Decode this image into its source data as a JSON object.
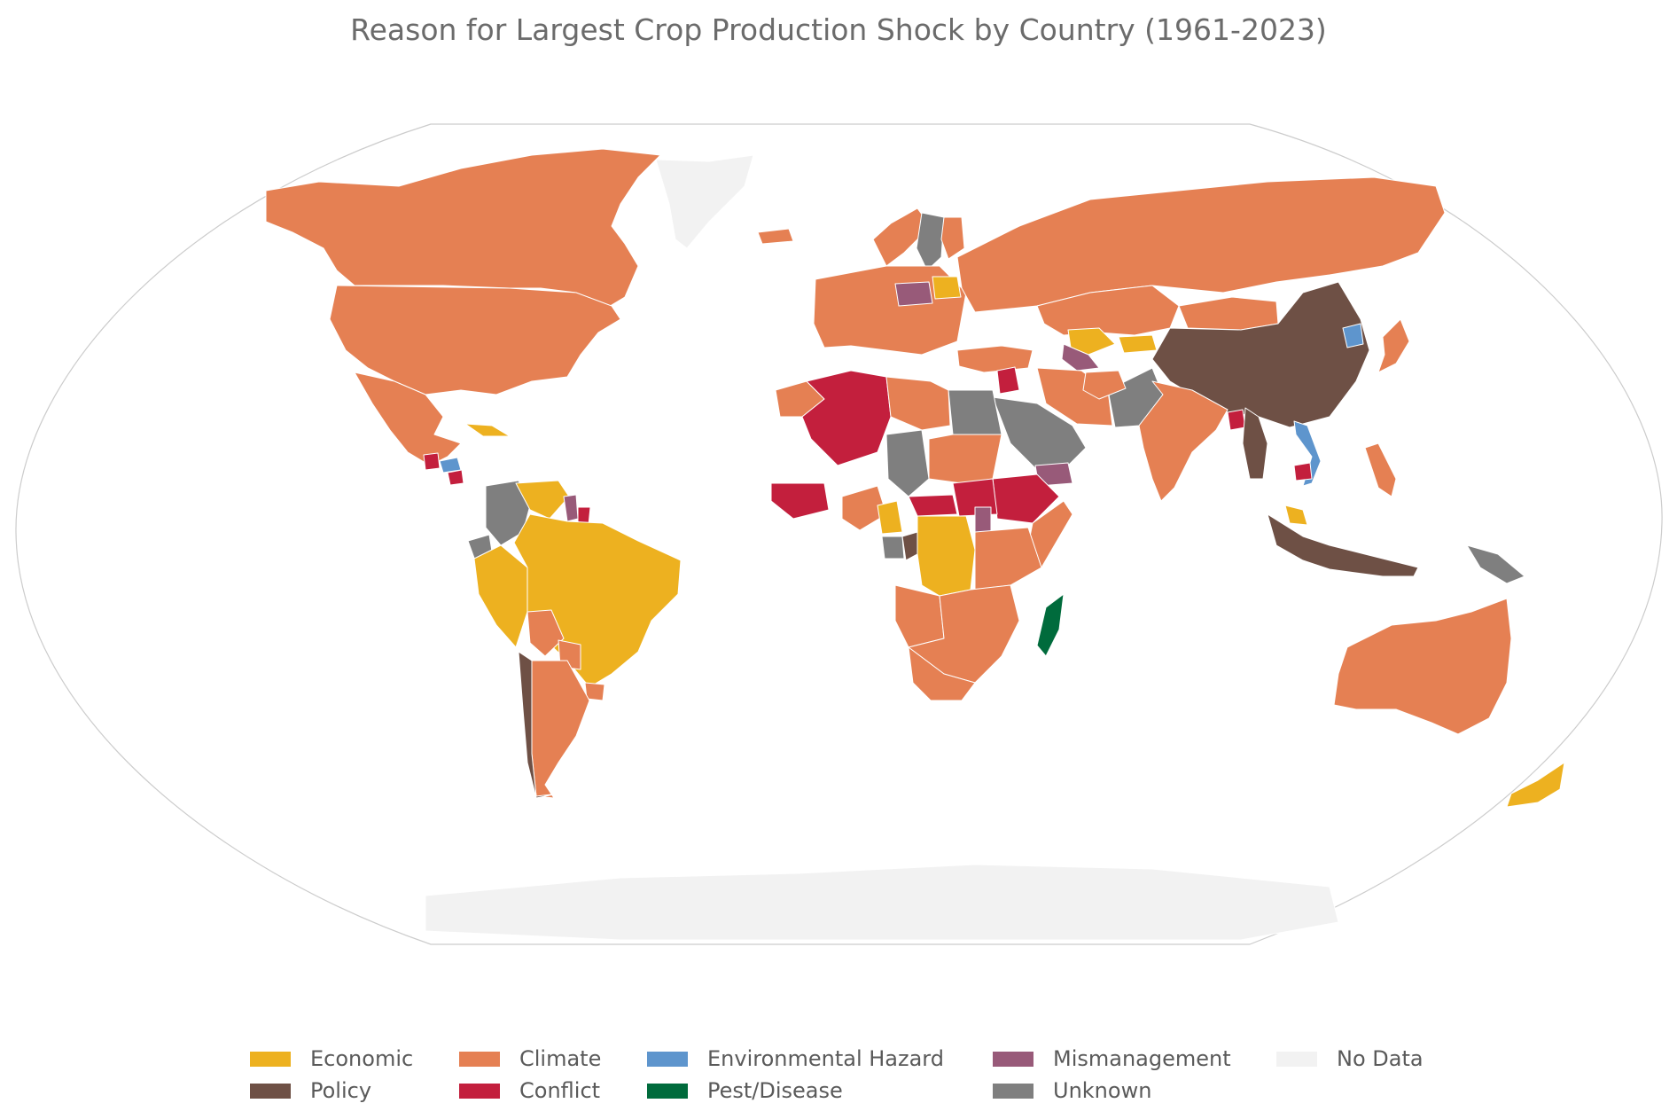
{
  "title": "Reason for Largest Crop Production Shock by Country (1961-2023)",
  "colors": {
    "economic": "#EDB120",
    "climate": "#E58053",
    "environmental": "#5E95CD",
    "mismanagement": "#985A79",
    "nodata": "#F2F2F2",
    "policy": "#6E5045",
    "conflict": "#C31F3D",
    "pest": "#006B3C",
    "unknown": "#7F7F7F"
  },
  "legend": [
    {
      "label": "Economic",
      "color": "#EDB120"
    },
    {
      "label": "Climate",
      "color": "#E58053"
    },
    {
      "label": "Environmental Hazard",
      "color": "#5E95CD"
    },
    {
      "label": "Mismanagement",
      "color": "#985A79"
    },
    {
      "label": "No Data",
      "color": "#F2F2F2"
    },
    {
      "label": "Policy",
      "color": "#6E5045"
    },
    {
      "label": "Conflict",
      "color": "#C31F3D"
    },
    {
      "label": "Pest/Disease",
      "color": "#006B3C"
    },
    {
      "label": "Unknown",
      "color": "#7F7F7F"
    }
  ],
  "chart_data": {
    "type": "choropleth",
    "title": "Reason for Largest Crop Production Shock by Country (1961-2023)",
    "categories": [
      "Economic",
      "Climate",
      "Environmental Hazard",
      "Mismanagement",
      "No Data",
      "Policy",
      "Conflict",
      "Pest/Disease",
      "Unknown"
    ],
    "regions": [
      {
        "name": "Canada",
        "category": "Climate"
      },
      {
        "name": "United States",
        "category": "Climate"
      },
      {
        "name": "Mexico",
        "category": "Climate"
      },
      {
        "name": "Cuba",
        "category": "Economic"
      },
      {
        "name": "Guatemala",
        "category": "Conflict"
      },
      {
        "name": "Honduras",
        "category": "Environmental Hazard"
      },
      {
        "name": "Nicaragua",
        "category": "Conflict"
      },
      {
        "name": "Colombia",
        "category": "Unknown"
      },
      {
        "name": "Venezuela",
        "category": "Economic"
      },
      {
        "name": "Guyana",
        "category": "Mismanagement"
      },
      {
        "name": "Suriname",
        "category": "Conflict"
      },
      {
        "name": "Ecuador",
        "category": "Unknown"
      },
      {
        "name": "Peru",
        "category": "Economic"
      },
      {
        "name": "Brazil",
        "category": "Economic"
      },
      {
        "name": "Bolivia",
        "category": "Climate"
      },
      {
        "name": "Paraguay",
        "category": "Climate"
      },
      {
        "name": "Uruguay",
        "category": "Climate"
      },
      {
        "name": "Argentina",
        "category": "Climate"
      },
      {
        "name": "Chile",
        "category": "Policy"
      },
      {
        "name": "Greenland",
        "category": "No Data"
      },
      {
        "name": "Iceland",
        "category": "Climate"
      },
      {
        "name": "Norway",
        "category": "Climate"
      },
      {
        "name": "Sweden",
        "category": "Unknown"
      },
      {
        "name": "Finland",
        "category": "Climate"
      },
      {
        "name": "Poland",
        "category": "Mismanagement"
      },
      {
        "name": "Belarus",
        "category": "Economic"
      },
      {
        "name": "Europe (other)",
        "category": "Climate"
      },
      {
        "name": "Russia",
        "category": "Climate"
      },
      {
        "name": "Kazakhstan",
        "category": "Climate"
      },
      {
        "name": "Uzbekistan",
        "category": "Economic"
      },
      {
        "name": "Turkmenistan",
        "category": "Mismanagement"
      },
      {
        "name": "Kyrgyzstan",
        "category": "Economic"
      },
      {
        "name": "Mongolia",
        "category": "Climate"
      },
      {
        "name": "China",
        "category": "Policy"
      },
      {
        "name": "North Korea",
        "category": "Environmental Hazard"
      },
      {
        "name": "Japan",
        "category": "Climate"
      },
      {
        "name": "Turkey",
        "category": "Climate"
      },
      {
        "name": "Syria",
        "category": "Conflict"
      },
      {
        "name": "Iran",
        "category": "Climate"
      },
      {
        "name": "Saudi Arabia",
        "category": "Unknown"
      },
      {
        "name": "Yemen",
        "category": "Mismanagement"
      },
      {
        "name": "Pakistan",
        "category": "Unknown"
      },
      {
        "name": "Afghanistan",
        "category": "Climate"
      },
      {
        "name": "India",
        "category": "Climate"
      },
      {
        "name": "Bangladesh",
        "category": "Conflict"
      },
      {
        "name": "Myanmar",
        "category": "Policy"
      },
      {
        "name": "Vietnam",
        "category": "Environmental Hazard"
      },
      {
        "name": "Cambodia",
        "category": "Conflict"
      },
      {
        "name": "Malaysia",
        "category": "Economic"
      },
      {
        "name": "Indonesia",
        "category": "Policy"
      },
      {
        "name": "Papua New Guinea",
        "category": "Unknown"
      },
      {
        "name": "Philippines",
        "category": "Climate"
      },
      {
        "name": "Australia",
        "category": "Climate"
      },
      {
        "name": "New Zealand",
        "category": "Economic"
      },
      {
        "name": "Morocco",
        "category": "Climate"
      },
      {
        "name": "Algeria",
        "category": "Conflict"
      },
      {
        "name": "Libya",
        "category": "Climate"
      },
      {
        "name": "Egypt",
        "category": "Unknown"
      },
      {
        "name": "Chad",
        "category": "Unknown"
      },
      {
        "name": "Sudan",
        "category": "Climate"
      },
      {
        "name": "Ethiopia",
        "category": "Conflict"
      },
      {
        "name": "Somalia",
        "category": "Climate"
      },
      {
        "name": "Nigeria",
        "category": "Climate"
      },
      {
        "name": "Cameroon",
        "category": "Economic"
      },
      {
        "name": "Central African Republic",
        "category": "Conflict"
      },
      {
        "name": "South Sudan",
        "category": "Conflict"
      },
      {
        "name": "Liberia",
        "category": "Conflict"
      },
      {
        "name": "DR Congo",
        "category": "Economic"
      },
      {
        "name": "Congo",
        "category": "Policy"
      },
      {
        "name": "Gabon",
        "category": "Unknown"
      },
      {
        "name": "Rwanda",
        "category": "Mismanagement"
      },
      {
        "name": "Madagascar",
        "category": "Pest/Disease"
      },
      {
        "name": "Angola",
        "category": "Climate"
      },
      {
        "name": "South Africa",
        "category": "Climate"
      },
      {
        "name": "Antarctica",
        "category": "No Data"
      }
    ]
  }
}
